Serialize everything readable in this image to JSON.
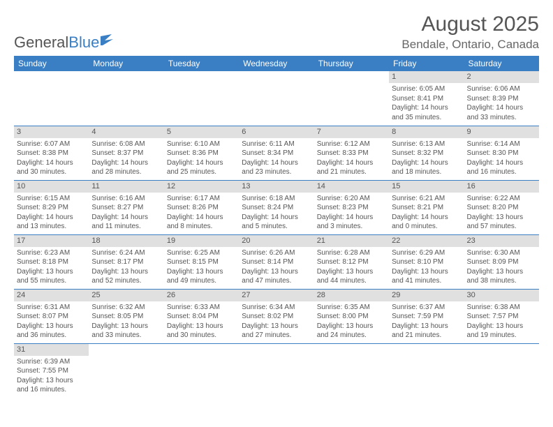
{
  "logo": {
    "text1": "General",
    "text2": "Blue"
  },
  "title": "August 2025",
  "location": "Bendale, Ontario, Canada",
  "colors": {
    "header_bg": "#3a7fc4",
    "header_fg": "#ffffff",
    "daynum_bg": "#e0e0e0",
    "rule": "#3a7fc4"
  },
  "days_of_week": [
    "Sunday",
    "Monday",
    "Tuesday",
    "Wednesday",
    "Thursday",
    "Friday",
    "Saturday"
  ],
  "weeks": [
    [
      null,
      null,
      null,
      null,
      null,
      {
        "n": "1",
        "sr": "6:05 AM",
        "ss": "8:41 PM",
        "dl": "14 hours and 35 minutes."
      },
      {
        "n": "2",
        "sr": "6:06 AM",
        "ss": "8:39 PM",
        "dl": "14 hours and 33 minutes."
      }
    ],
    [
      {
        "n": "3",
        "sr": "6:07 AM",
        "ss": "8:38 PM",
        "dl": "14 hours and 30 minutes."
      },
      {
        "n": "4",
        "sr": "6:08 AM",
        "ss": "8:37 PM",
        "dl": "14 hours and 28 minutes."
      },
      {
        "n": "5",
        "sr": "6:10 AM",
        "ss": "8:36 PM",
        "dl": "14 hours and 25 minutes."
      },
      {
        "n": "6",
        "sr": "6:11 AM",
        "ss": "8:34 PM",
        "dl": "14 hours and 23 minutes."
      },
      {
        "n": "7",
        "sr": "6:12 AM",
        "ss": "8:33 PM",
        "dl": "14 hours and 21 minutes."
      },
      {
        "n": "8",
        "sr": "6:13 AM",
        "ss": "8:32 PM",
        "dl": "14 hours and 18 minutes."
      },
      {
        "n": "9",
        "sr": "6:14 AM",
        "ss": "8:30 PM",
        "dl": "14 hours and 16 minutes."
      }
    ],
    [
      {
        "n": "10",
        "sr": "6:15 AM",
        "ss": "8:29 PM",
        "dl": "14 hours and 13 minutes."
      },
      {
        "n": "11",
        "sr": "6:16 AM",
        "ss": "8:27 PM",
        "dl": "14 hours and 11 minutes."
      },
      {
        "n": "12",
        "sr": "6:17 AM",
        "ss": "8:26 PM",
        "dl": "14 hours and 8 minutes."
      },
      {
        "n": "13",
        "sr": "6:18 AM",
        "ss": "8:24 PM",
        "dl": "14 hours and 5 minutes."
      },
      {
        "n": "14",
        "sr": "6:20 AM",
        "ss": "8:23 PM",
        "dl": "14 hours and 3 minutes."
      },
      {
        "n": "15",
        "sr": "6:21 AM",
        "ss": "8:21 PM",
        "dl": "14 hours and 0 minutes."
      },
      {
        "n": "16",
        "sr": "6:22 AM",
        "ss": "8:20 PM",
        "dl": "13 hours and 57 minutes."
      }
    ],
    [
      {
        "n": "17",
        "sr": "6:23 AM",
        "ss": "8:18 PM",
        "dl": "13 hours and 55 minutes."
      },
      {
        "n": "18",
        "sr": "6:24 AM",
        "ss": "8:17 PM",
        "dl": "13 hours and 52 minutes."
      },
      {
        "n": "19",
        "sr": "6:25 AM",
        "ss": "8:15 PM",
        "dl": "13 hours and 49 minutes."
      },
      {
        "n": "20",
        "sr": "6:26 AM",
        "ss": "8:14 PM",
        "dl": "13 hours and 47 minutes."
      },
      {
        "n": "21",
        "sr": "6:28 AM",
        "ss": "8:12 PM",
        "dl": "13 hours and 44 minutes."
      },
      {
        "n": "22",
        "sr": "6:29 AM",
        "ss": "8:10 PM",
        "dl": "13 hours and 41 minutes."
      },
      {
        "n": "23",
        "sr": "6:30 AM",
        "ss": "8:09 PM",
        "dl": "13 hours and 38 minutes."
      }
    ],
    [
      {
        "n": "24",
        "sr": "6:31 AM",
        "ss": "8:07 PM",
        "dl": "13 hours and 36 minutes."
      },
      {
        "n": "25",
        "sr": "6:32 AM",
        "ss": "8:05 PM",
        "dl": "13 hours and 33 minutes."
      },
      {
        "n": "26",
        "sr": "6:33 AM",
        "ss": "8:04 PM",
        "dl": "13 hours and 30 minutes."
      },
      {
        "n": "27",
        "sr": "6:34 AM",
        "ss": "8:02 PM",
        "dl": "13 hours and 27 minutes."
      },
      {
        "n": "28",
        "sr": "6:35 AM",
        "ss": "8:00 PM",
        "dl": "13 hours and 24 minutes."
      },
      {
        "n": "29",
        "sr": "6:37 AM",
        "ss": "7:59 PM",
        "dl": "13 hours and 21 minutes."
      },
      {
        "n": "30",
        "sr": "6:38 AM",
        "ss": "7:57 PM",
        "dl": "13 hours and 19 minutes."
      }
    ],
    [
      {
        "n": "31",
        "sr": "6:39 AM",
        "ss": "7:55 PM",
        "dl": "13 hours and 16 minutes."
      },
      null,
      null,
      null,
      null,
      null,
      null
    ]
  ],
  "labels": {
    "sunrise": "Sunrise: ",
    "sunset": "Sunset: ",
    "daylight": "Daylight: "
  }
}
